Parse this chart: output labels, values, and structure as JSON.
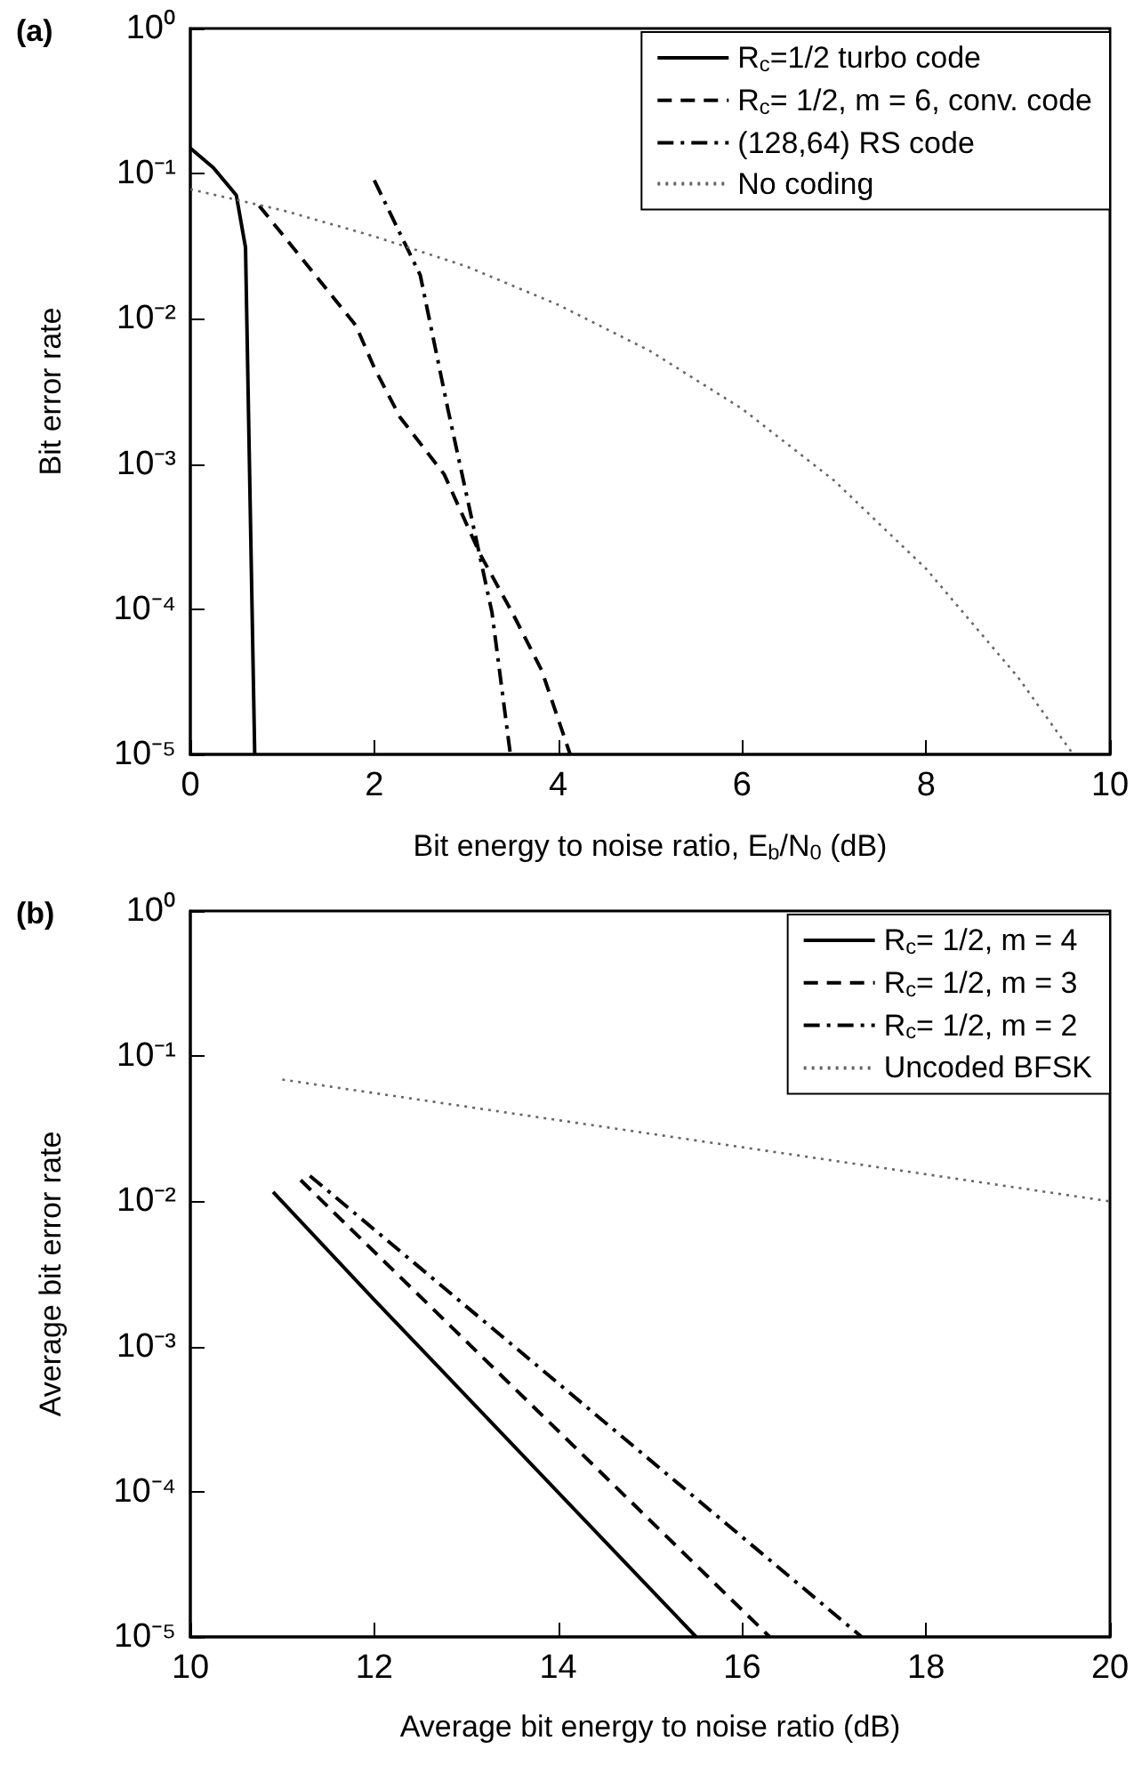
{
  "chart_data": [
    {
      "type": "line",
      "title": "(a)",
      "xlabel": "Bit energy to noise ratio, E$_{b}$/N$_{0}$ (dB)",
      "ylabel": "Bit error rate",
      "log": "y",
      "grid": false,
      "legend": "top right",
      "marker": "none",
      "xlim": [
        0,
        10
      ],
      "xticks": [
        0,
        2,
        4,
        6,
        8,
        10
      ],
      "ylim": [
        1e-05,
        1
      ],
      "yticks": [
        {
          "value": 1e-05,
          "label": "10⁻⁵"
        },
        {
          "value": 0.0001,
          "label": "10⁻⁴"
        },
        {
          "value": 0.001,
          "label": "10⁻³"
        },
        {
          "value": 0.01,
          "label": "10⁻²"
        },
        {
          "value": 0.1,
          "label": "10⁻¹"
        },
        {
          "value": 1,
          "label": "10⁰"
        }
      ],
      "series": [
        {
          "name": "R$_{c}$=1/2 turbo code",
          "color": "#000000",
          "line_style": "solid",
          "x": [
            0,
            0.25,
            0.5,
            0.6,
            0.7
          ],
          "values": [
            0.15,
            0.11,
            0.071,
            0.031,
            1e-05
          ]
        },
        {
          "name": "R$_{c}$= 1/2, m = 6, conv. code",
          "color": "#000000",
          "line_style": "dashed",
          "x": [
            0.75,
            1.8,
            2.0,
            2.28,
            2.76,
            3.15,
            3.5,
            3.82,
            4.13
          ],
          "values": [
            0.06,
            0.009,
            0.0046,
            0.0021,
            0.00085,
            0.00024,
            9.5e-05,
            3.8e-05,
            1e-05
          ]
        },
        {
          "name": "(128,64) RS code",
          "color": "#000000",
          "line_style": "dashdot",
          "x": [
            2.0,
            2.5,
            2.8,
            3.11,
            3.28,
            3.48
          ],
          "values": [
            0.09,
            0.02,
            0.0024,
            0.0003,
            9.5e-05,
            1e-05
          ]
        },
        {
          "name": "No coding",
          "color": "#666666",
          "line_style": "dotted",
          "x": [
            0,
            1,
            2,
            3,
            4,
            5,
            6,
            7,
            8,
            9,
            9.6
          ],
          "values": [
            0.078,
            0.056,
            0.037,
            0.023,
            0.0125,
            0.006,
            0.0024,
            0.00077,
            0.00019,
            3.4e-05,
            1e-05
          ]
        }
      ]
    },
    {
      "type": "line",
      "title": "(b)",
      "xlabel": "Average bit energy to noise ratio (dB)",
      "ylabel": "Average bit error rate",
      "log": "y",
      "grid": false,
      "legend": "top right",
      "marker": "none",
      "xlim": [
        10,
        20
      ],
      "xticks": [
        10,
        12,
        14,
        16,
        18,
        20
      ],
      "ylim": [
        1e-05,
        1
      ],
      "yticks": [
        {
          "value": 1e-05,
          "label": "10⁻⁵"
        },
        {
          "value": 0.0001,
          "label": "10⁻⁴"
        },
        {
          "value": 0.001,
          "label": "10⁻³"
        },
        {
          "value": 0.01,
          "label": "10⁻²"
        },
        {
          "value": 0.1,
          "label": "10⁻¹"
        },
        {
          "value": 1,
          "label": "10⁰"
        }
      ],
      "series": [
        {
          "name": "R$_{c}$= 1/2, m = 4",
          "color": "#000000",
          "line_style": "solid",
          "x": [
            10.9,
            12,
            15.5
          ],
          "values": [
            0.0116,
            0.0021,
            1e-05
          ]
        },
        {
          "name": "R$_{c}$= 1/2, m = 3",
          "color": "#000000",
          "line_style": "dashed",
          "x": [
            11.2,
            16.3
          ],
          "values": [
            0.014,
            1e-05
          ]
        },
        {
          "name": "R$_{c}$= 1/2, m = 2",
          "color": "#000000",
          "line_style": "dashdot",
          "x": [
            11.3,
            17.3
          ],
          "values": [
            0.015,
            1e-05
          ]
        },
        {
          "name": "Uncoded BFSK",
          "color": "#666666",
          "line_style": "dotted",
          "x": [
            11,
            20
          ],
          "values": [
            0.069,
            0.01
          ]
        }
      ]
    }
  ]
}
